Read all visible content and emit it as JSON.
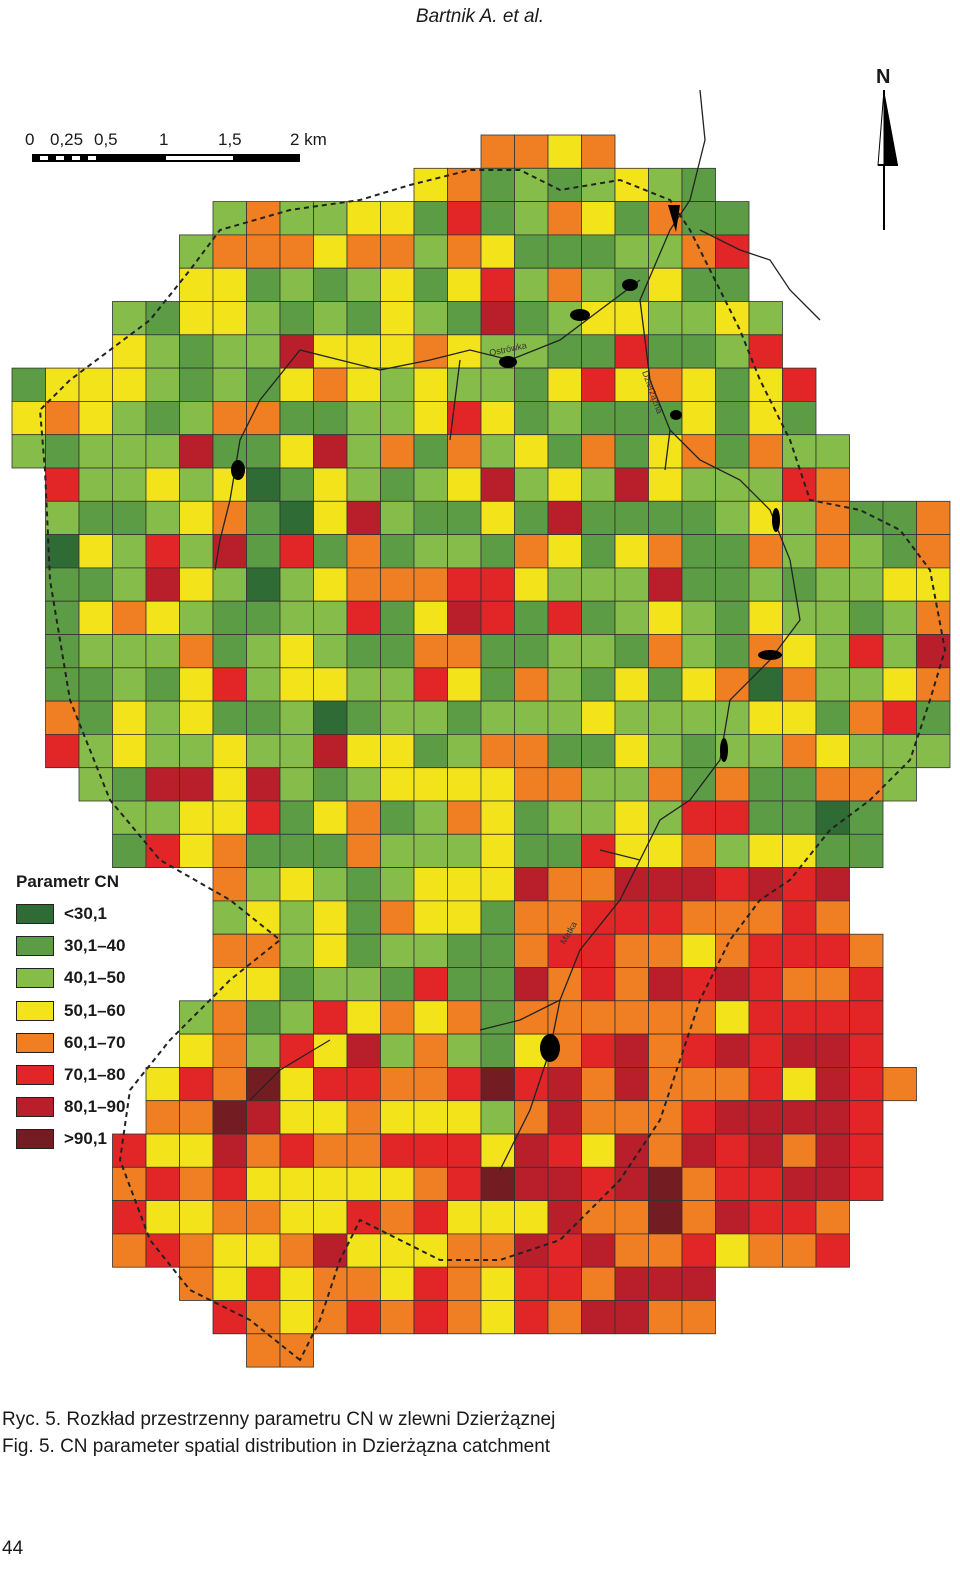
{
  "header": {
    "text": "Bartnik A. et al."
  },
  "scale_bar": {
    "labels": [
      "0",
      "0,25",
      "0,5",
      "1",
      "1,5",
      "2 km"
    ]
  },
  "north_arrow": {
    "label": "N",
    "icon": "north-arrow-icon"
  },
  "legend": {
    "title": "Parametr CN",
    "classes": [
      {
        "label": "<30,1",
        "color": "#2f6b34"
      },
      {
        "label": "30,1–40",
        "color": "#5c9c44"
      },
      {
        "label": "40,1–50",
        "color": "#86bd4a"
      },
      {
        "label": "50,1–60",
        "color": "#f2e31a"
      },
      {
        "label": "60,1–70",
        "color": "#f07f24"
      },
      {
        "label": "70,1–80",
        "color": "#e22627"
      },
      {
        "label": "80,1–90",
        "color": "#b81f2a"
      },
      {
        "label": ">90,1",
        "color": "#731c22"
      }
    ]
  },
  "river_labels": [
    "Ostrówka",
    "Dzierżążna",
    "Matka"
  ],
  "caption": {
    "line_pl": "Ryc. 5. Rozkład przestrzenny parametru CN w zlewni Dzierżąznej",
    "line_en": "Fig. 5. CN parameter spatial distribution in Dzierżązna catchment"
  },
  "page_number": "44"
}
